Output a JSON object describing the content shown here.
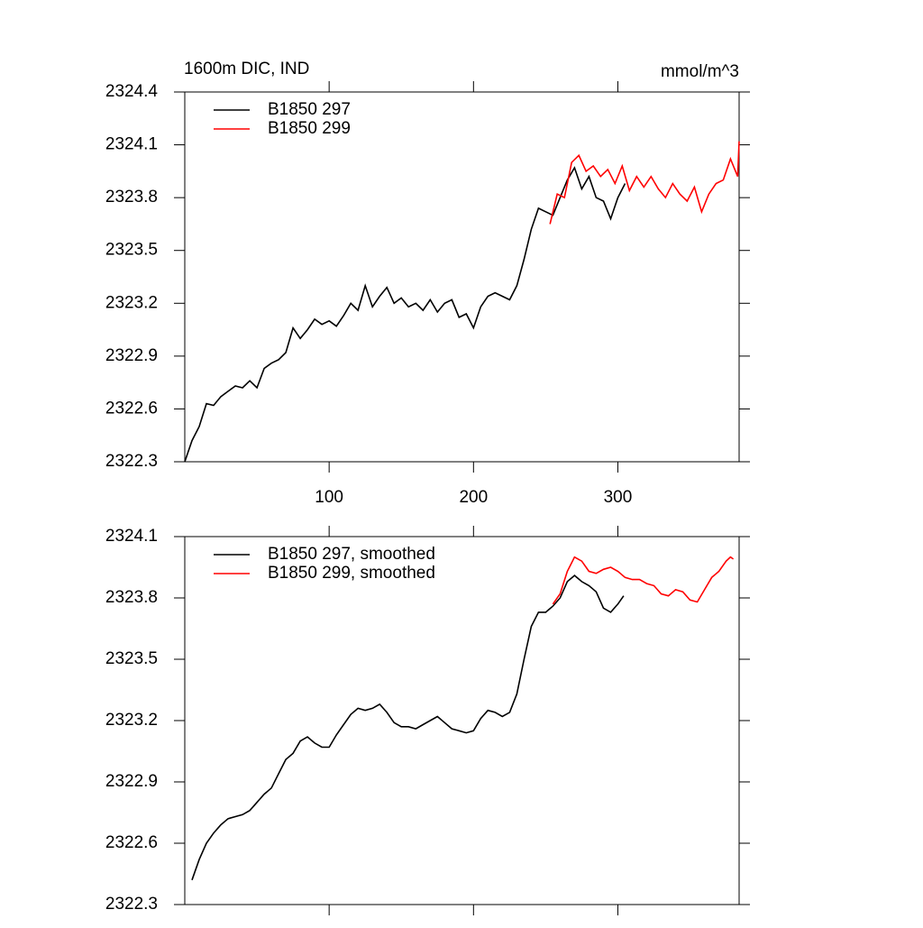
{
  "chart_data": [
    {
      "type": "line",
      "title": "1600m DIC, IND",
      "units": "mmol/m^3",
      "xlim": [
        0,
        384
      ],
      "xticks": [
        100,
        200,
        300
      ],
      "show_xtick_labels": true,
      "ylim": [
        2322.3,
        2324.4
      ],
      "yticks": [
        2322.3,
        2322.6,
        2322.9,
        2323.2,
        2323.5,
        2323.8,
        2324.1,
        2324.4
      ],
      "legend": "top-left",
      "grid": false,
      "series": [
        {
          "name": "B1850 297",
          "color": "#000000",
          "x": [
            0,
            5,
            10,
            15,
            20,
            25,
            30,
            35,
            40,
            45,
            50,
            55,
            60,
            65,
            70,
            75,
            80,
            85,
            90,
            95,
            100,
            105,
            110,
            115,
            120,
            125,
            130,
            135,
            140,
            145,
            150,
            155,
            160,
            165,
            170,
            175,
            180,
            185,
            190,
            195,
            200,
            205,
            210,
            215,
            220,
            225,
            230,
            235,
            240,
            245,
            250,
            255,
            260,
            265,
            270,
            275,
            280,
            285,
            290,
            295,
            300,
            305
          ],
          "values": [
            2322.3,
            2322.42,
            2322.5,
            2322.63,
            2322.62,
            2322.67,
            2322.7,
            2322.73,
            2322.72,
            2322.76,
            2322.72,
            2322.83,
            2322.86,
            2322.88,
            2322.92,
            2323.06,
            2323.0,
            2323.05,
            2323.11,
            2323.08,
            2323.1,
            2323.07,
            2323.13,
            2323.2,
            2323.16,
            2323.3,
            2323.18,
            2323.24,
            2323.29,
            2323.2,
            2323.23,
            2323.18,
            2323.2,
            2323.16,
            2323.22,
            2323.15,
            2323.2,
            2323.22,
            2323.12,
            2323.14,
            2323.06,
            2323.18,
            2323.24,
            2323.26,
            2323.24,
            2323.22,
            2323.3,
            2323.45,
            2323.62,
            2323.74,
            2323.72,
            2323.7,
            2323.8,
            2323.9,
            2323.97,
            2323.85,
            2323.92,
            2323.8,
            2323.78,
            2323.68,
            2323.8,
            2323.88
          ]
        },
        {
          "name": "B1850 299",
          "color": "#ff0000",
          "x": [
            253,
            258,
            263,
            268,
            273,
            278,
            283,
            288,
            293,
            298,
            303,
            308,
            313,
            318,
            323,
            328,
            333,
            338,
            343,
            348,
            353,
            358,
            363,
            368,
            373,
            378,
            383,
            384
          ],
          "values": [
            2323.65,
            2323.82,
            2323.8,
            2324.0,
            2324.04,
            2323.95,
            2323.98,
            2323.92,
            2323.96,
            2323.88,
            2323.98,
            2323.84,
            2323.92,
            2323.86,
            2323.92,
            2323.85,
            2323.8,
            2323.88,
            2323.82,
            2323.78,
            2323.86,
            2323.72,
            2323.82,
            2323.88,
            2323.9,
            2324.02,
            2323.92,
            2324.12
          ]
        }
      ]
    },
    {
      "type": "line",
      "xlim": [
        0,
        384
      ],
      "xticks": [
        100,
        200,
        300
      ],
      "show_xtick_labels": false,
      "ylim": [
        2322.3,
        2324.1
      ],
      "yticks": [
        2322.3,
        2322.6,
        2322.9,
        2323.2,
        2323.5,
        2323.8,
        2324.1
      ],
      "legend": "top-left",
      "grid": false,
      "series": [
        {
          "name": "B1850 297, smoothed",
          "color": "#000000",
          "x": [
            5,
            10,
            15,
            20,
            25,
            30,
            35,
            40,
            45,
            50,
            55,
            60,
            65,
            70,
            75,
            80,
            85,
            90,
            95,
            100,
            105,
            110,
            115,
            120,
            125,
            130,
            135,
            140,
            145,
            150,
            155,
            160,
            165,
            170,
            175,
            180,
            185,
            190,
            195,
            200,
            205,
            210,
            215,
            220,
            225,
            230,
            235,
            240,
            245,
            250,
            255,
            260,
            265,
            270,
            275,
            280,
            285,
            290,
            295,
            300,
            304
          ],
          "values": [
            2322.42,
            2322.52,
            2322.6,
            2322.65,
            2322.69,
            2322.72,
            2322.73,
            2322.74,
            2322.76,
            2322.8,
            2322.84,
            2322.87,
            2322.94,
            2323.01,
            2323.04,
            2323.1,
            2323.12,
            2323.09,
            2323.07,
            2323.07,
            2323.13,
            2323.18,
            2323.23,
            2323.26,
            2323.25,
            2323.26,
            2323.28,
            2323.24,
            2323.19,
            2323.17,
            2323.17,
            2323.16,
            2323.18,
            2323.2,
            2323.22,
            2323.19,
            2323.16,
            2323.15,
            2323.14,
            2323.15,
            2323.21,
            2323.25,
            2323.24,
            2323.22,
            2323.24,
            2323.33,
            2323.5,
            2323.66,
            2323.73,
            2323.73,
            2323.76,
            2323.8,
            2323.88,
            2323.91,
            2323.88,
            2323.86,
            2323.83,
            2323.75,
            2323.73,
            2323.77,
            2323.81
          ]
        },
        {
          "name": "B1850 299, smoothed",
          "color": "#ff0000",
          "x": [
            255,
            260,
            265,
            270,
            275,
            280,
            285,
            290,
            295,
            300,
            305,
            310,
            315,
            320,
            325,
            330,
            335,
            340,
            345,
            350,
            355,
            360,
            365,
            370,
            375,
            378,
            380
          ],
          "values": [
            2323.77,
            2323.82,
            2323.93,
            2324.0,
            2323.98,
            2323.93,
            2323.92,
            2323.94,
            2323.95,
            2323.93,
            2323.9,
            2323.89,
            2323.89,
            2323.87,
            2323.86,
            2323.82,
            2323.81,
            2323.84,
            2323.83,
            2323.79,
            2323.78,
            2323.84,
            2323.9,
            2323.93,
            2323.98,
            2324.0,
            2323.99
          ]
        }
      ]
    }
  ]
}
